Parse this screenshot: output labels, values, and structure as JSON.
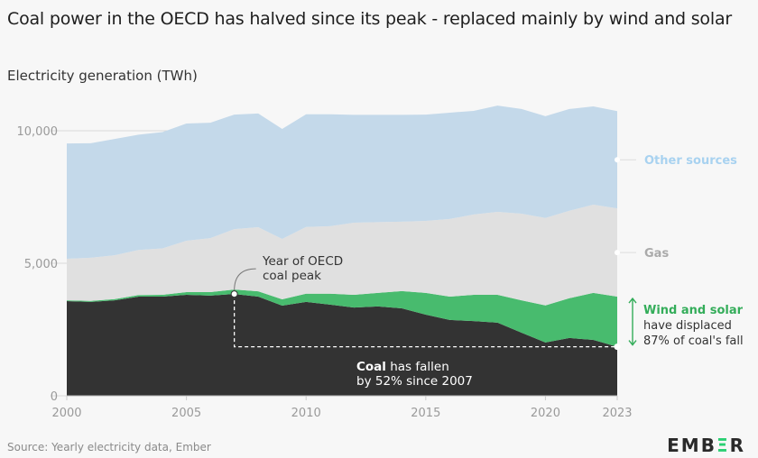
{
  "title": "Coal power in the OECD has halved since its peak - replaced mainly by wind and solar",
  "subtitle": "Electricity generation (TWh)",
  "source": "Source: Yearly electricity data, Ember",
  "logo": {
    "text": "EMBER",
    "accent_color": "#2bd073"
  },
  "chart_data": {
    "type": "area",
    "stacked": true,
    "x": [
      2000,
      2001,
      2002,
      2003,
      2004,
      2005,
      2006,
      2007,
      2008,
      2009,
      2010,
      2011,
      2012,
      2013,
      2014,
      2015,
      2016,
      2017,
      2018,
      2019,
      2020,
      2021,
      2022,
      2023
    ],
    "series": [
      {
        "name": "Coal",
        "color": "#333333",
        "values": [
          3570,
          3540,
          3600,
          3740,
          3740,
          3810,
          3780,
          3840,
          3740,
          3400,
          3540,
          3440,
          3330,
          3370,
          3300,
          3060,
          2860,
          2820,
          2760,
          2380,
          2010,
          2180,
          2110,
          1850
        ]
      },
      {
        "name": "Wind and solar",
        "color": "#48bb6e",
        "values": [
          30,
          40,
          50,
          60,
          70,
          100,
          130,
          170,
          200,
          240,
          310,
          410,
          480,
          510,
          650,
          820,
          880,
          990,
          1050,
          1220,
          1400,
          1500,
          1770,
          1890
        ]
      },
      {
        "name": "Gas",
        "color": "#e0e0e0",
        "values": [
          1570,
          1630,
          1650,
          1700,
          1750,
          1940,
          2040,
          2280,
          2420,
          2280,
          2520,
          2550,
          2720,
          2670,
          2620,
          2720,
          2930,
          3030,
          3130,
          3270,
          3300,
          3300,
          3330,
          3330
        ]
      },
      {
        "name": "Other sources",
        "color": "#c4d9ea",
        "values": [
          4350,
          4320,
          4390,
          4350,
          4390,
          4420,
          4350,
          4320,
          4290,
          4150,
          4250,
          4220,
          4070,
          4050,
          4030,
          4010,
          4010,
          3910,
          4010,
          3950,
          3840,
          3840,
          3710,
          3670
        ]
      }
    ],
    "xlim": [
      2000,
      2023
    ],
    "ylim": [
      0,
      11000
    ],
    "x_ticks": [
      "2000",
      "2005",
      "2010",
      "2015",
      "2020",
      "2023"
    ],
    "y_ticks": [
      "0",
      "5,000",
      "10,000"
    ],
    "grid": true,
    "legend": "right, direct labels",
    "labels": {
      "other": "Other sources",
      "other_color": "#a8d2f0",
      "gas": "Gas",
      "gas_color": "#aaaaaa",
      "ws_bold": "Wind and solar",
      "ws_line2": "have displaced",
      "ws_line3": "87% of coal's fall",
      "ws_color": "#34ad5a"
    },
    "annotations": {
      "peak_line1": "Year of OECD",
      "peak_line2": "coal peak",
      "peak_year": 2007,
      "coal_bold": "Coal",
      "coal_rest": " has fallen",
      "coal_line2": "by 52% since 2007"
    }
  }
}
